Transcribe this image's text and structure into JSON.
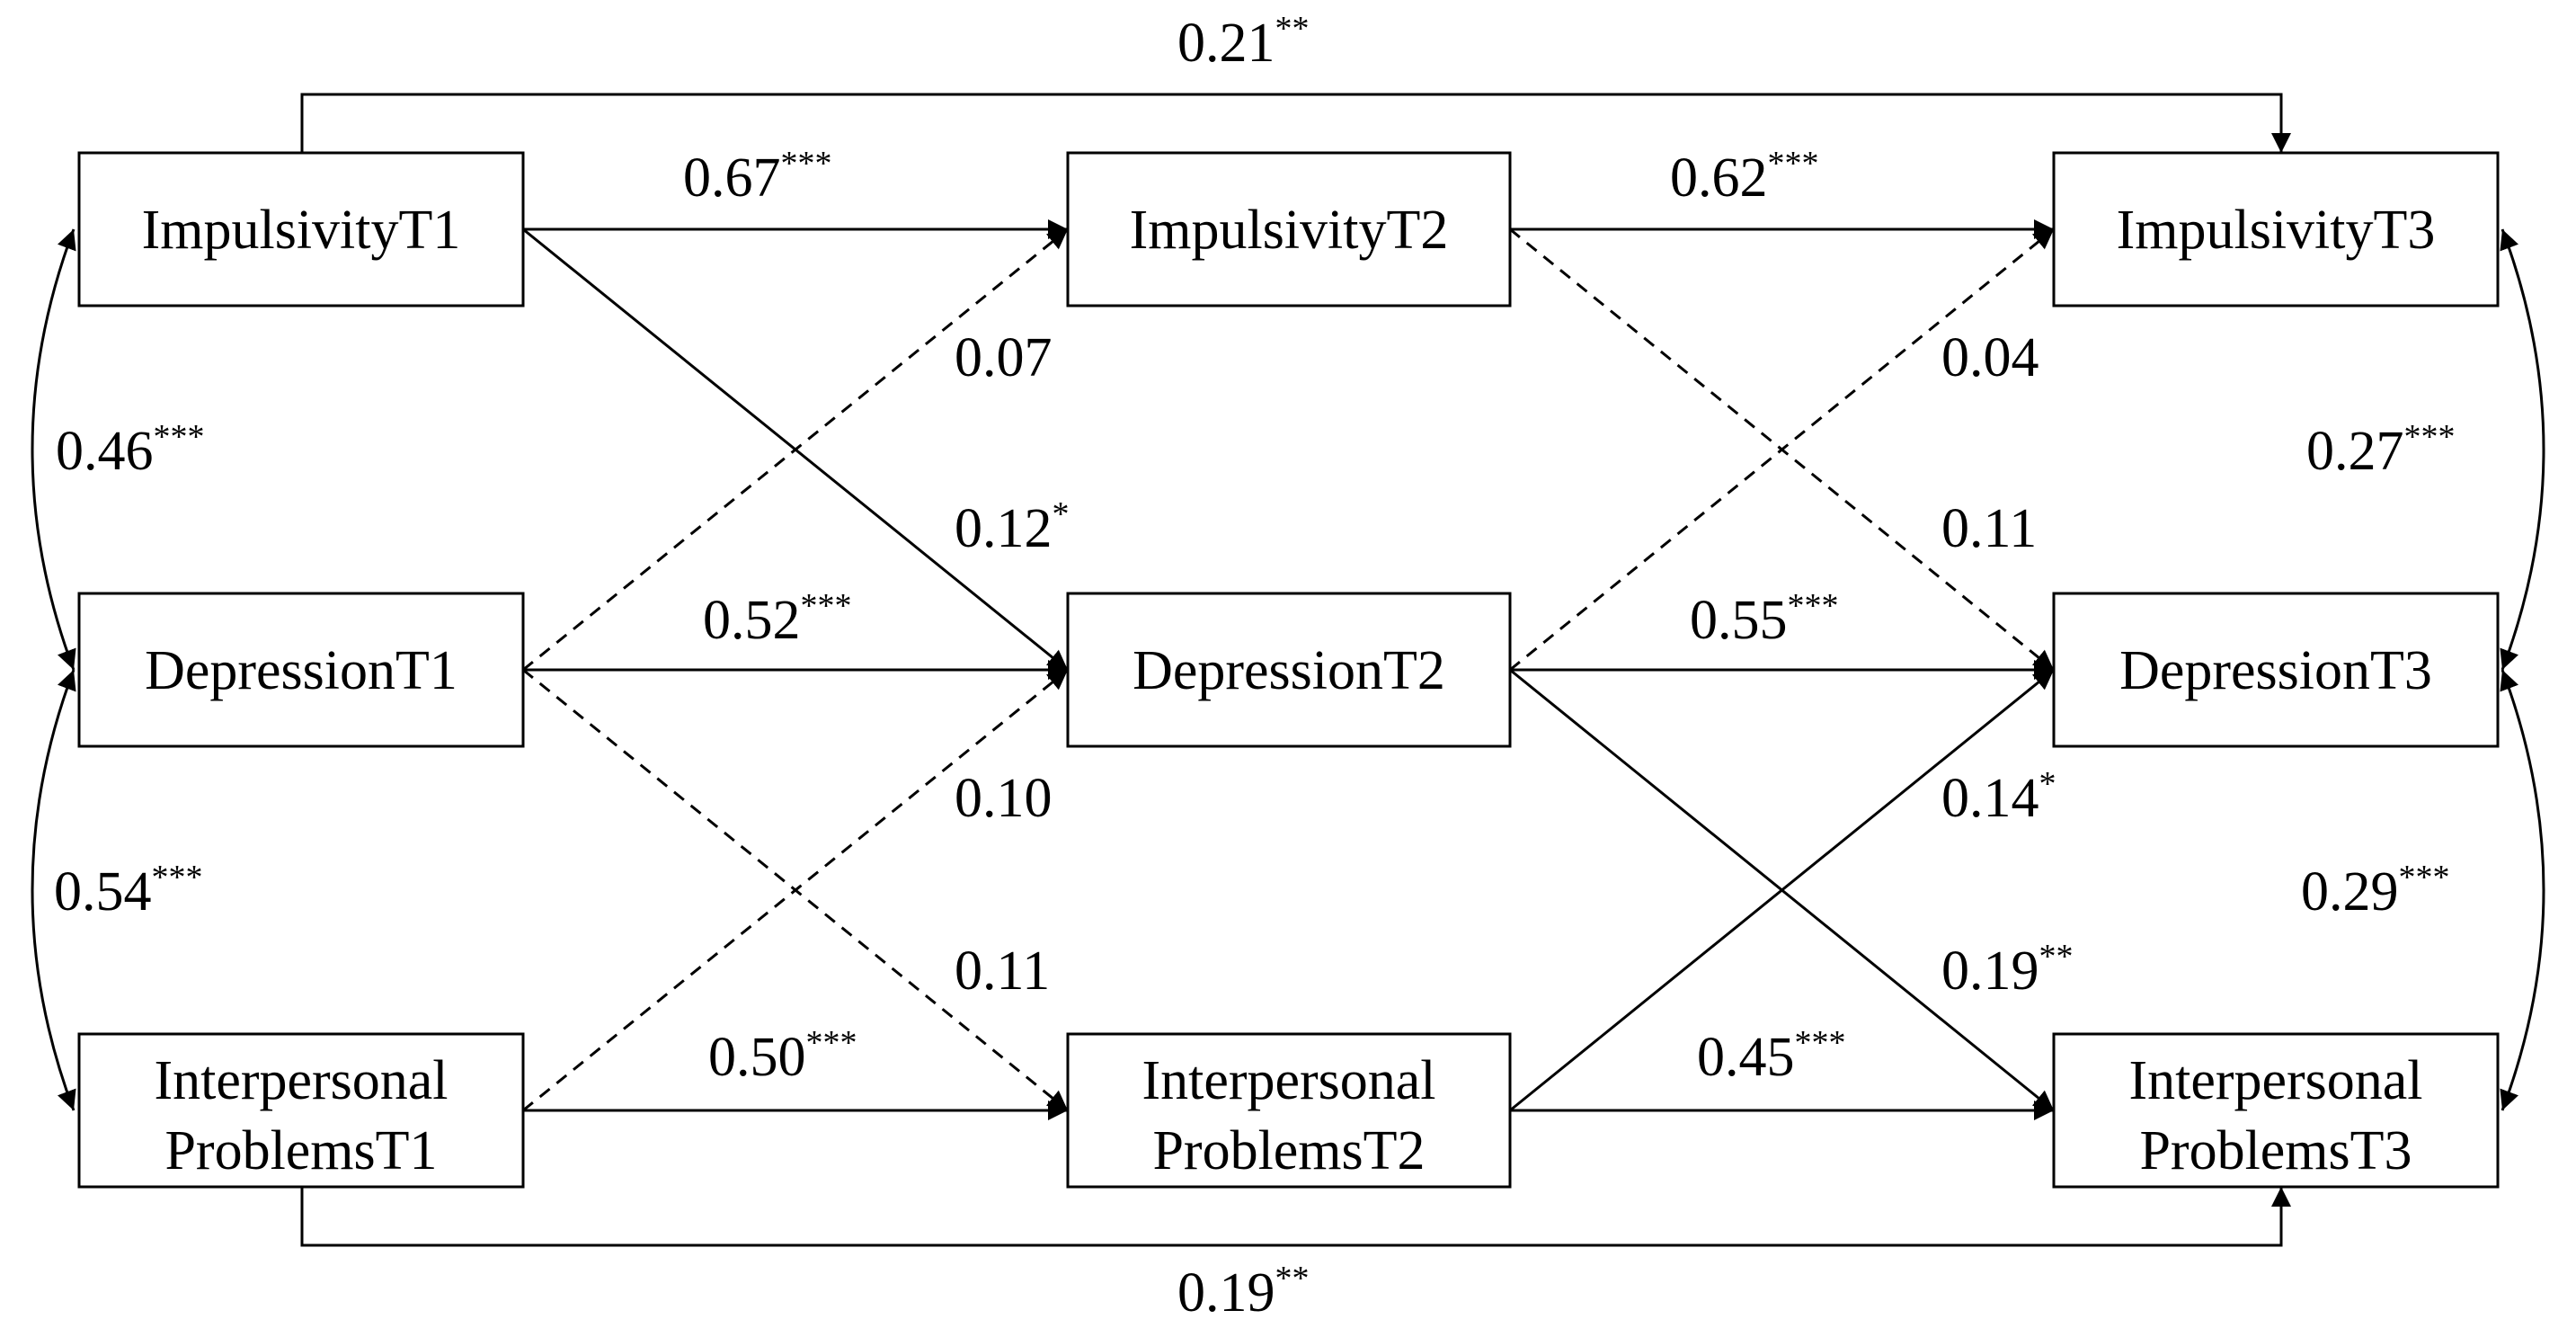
{
  "nodes": {
    "imp1": {
      "lines": [
        "ImpulsivityT1"
      ]
    },
    "imp2": {
      "lines": [
        "ImpulsivityT2"
      ]
    },
    "imp3": {
      "lines": [
        "ImpulsivityT3"
      ]
    },
    "dep1": {
      "lines": [
        "DepressionT1"
      ]
    },
    "dep2": {
      "lines": [
        "DepressionT2"
      ]
    },
    "dep3": {
      "lines": [
        "DepressionT3"
      ]
    },
    "ip1": {
      "lines": [
        "Interpersonal",
        "ProblemsT1"
      ]
    },
    "ip2": {
      "lines": [
        "Interpersonal",
        "ProblemsT2"
      ]
    },
    "ip3": {
      "lines": [
        "Interpersonal",
        "ProblemsT3"
      ]
    }
  },
  "coefficients": {
    "imp1_imp3": {
      "value": "0.21",
      "stars": "**"
    },
    "imp1_imp2": {
      "value": "0.67",
      "stars": "***"
    },
    "imp2_imp3": {
      "value": "0.62",
      "stars": "***"
    },
    "dep1_imp2": {
      "value": "0.07",
      "stars": ""
    },
    "dep2_imp3": {
      "value": "0.04",
      "stars": ""
    },
    "imp1_dep1_cov": {
      "value": "0.46",
      "stars": "***"
    },
    "imp3_dep3_cov": {
      "value": "0.27",
      "stars": "***"
    },
    "imp1_dep2": {
      "value": "0.12",
      "stars": "*"
    },
    "imp2_dep3": {
      "value": "0.11",
      "stars": ""
    },
    "dep1_dep2": {
      "value": "0.52",
      "stars": "***"
    },
    "dep2_dep3": {
      "value": "0.55",
      "stars": "***"
    },
    "ip1_dep2": {
      "value": "0.10",
      "stars": ""
    },
    "ip2_dep3": {
      "value": "0.14",
      "stars": "*"
    },
    "dep1_ip1_cov": {
      "value": "0.54",
      "stars": "***"
    },
    "dep3_ip3_cov": {
      "value": "0.29",
      "stars": "***"
    },
    "dep1_ip2": {
      "value": "0.11",
      "stars": ""
    },
    "dep2_ip3": {
      "value": "0.19",
      "stars": "**"
    },
    "ip1_ip2": {
      "value": "0.50",
      "stars": "***"
    },
    "ip2_ip3": {
      "value": "0.45",
      "stars": "***"
    },
    "ip1_ip3": {
      "value": "0.19",
      "stars": "**"
    }
  }
}
